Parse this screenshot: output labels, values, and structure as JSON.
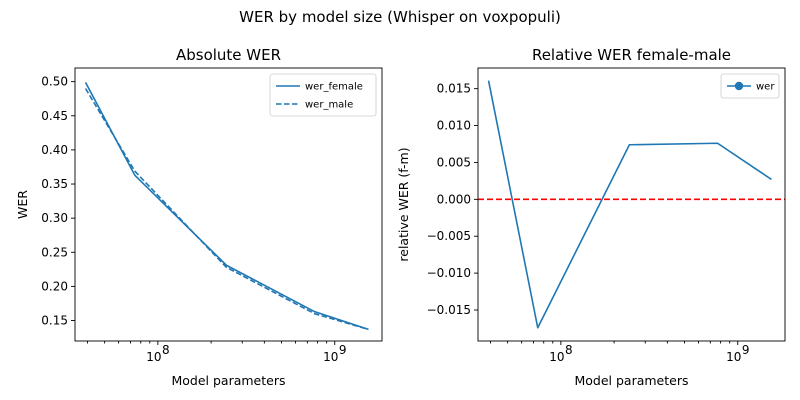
{
  "suptitle": "WER by model size (Whisper on voxpopuli)",
  "chart_data": [
    {
      "type": "line",
      "title": "Absolute WER",
      "xlabel": "Model parameters",
      "ylabel": "WER",
      "xscale": "log",
      "xlim": [
        34000000,
        1850000000
      ],
      "ylim": [
        0.12,
        0.52
      ],
      "x": [
        39000000,
        74000000,
        244000000,
        769000000,
        1550000000
      ],
      "yticks": [
        0.15,
        0.2,
        0.25,
        0.3,
        0.35,
        0.4,
        0.45,
        0.5
      ],
      "ytick_labels": [
        "0.15",
        "0.20",
        "0.25",
        "0.30",
        "0.35",
        "0.40",
        "0.45",
        "0.50"
      ],
      "xticks": [
        100000000,
        1000000000
      ],
      "xtick_labels": [
        "10",
        "10"
      ],
      "xtick_exponents": [
        "8",
        "9"
      ],
      "grid": false,
      "legend_placement": "top-right",
      "series": [
        {
          "name": "wer_female",
          "values": [
            0.499,
            0.363,
            0.231,
            0.163,
            0.137
          ],
          "color": "#1f77b4",
          "style": "solid"
        },
        {
          "name": "wer_male",
          "values": [
            0.49,
            0.369,
            0.228,
            0.16,
            0.137
          ],
          "color": "#1f77b4",
          "style": "dashed"
        }
      ]
    },
    {
      "type": "line",
      "title": "Relative WER female-male",
      "xlabel": "Model parameters",
      "ylabel": "relative WER (f-m)",
      "xscale": "log",
      "xlim": [
        34000000,
        1850000000
      ],
      "ylim": [
        -0.0192,
        0.0178
      ],
      "x": [
        39000000,
        74000000,
        244000000,
        769000000,
        1550000000
      ],
      "yticks": [
        -0.015,
        -0.01,
        -0.005,
        0.0,
        0.005,
        0.01,
        0.015
      ],
      "ytick_labels": [
        "−0.015",
        "−0.010",
        "−0.005",
        "0.000",
        "0.005",
        "0.010",
        "0.015"
      ],
      "xticks": [
        100000000,
        1000000000
      ],
      "xtick_labels": [
        "10",
        "10"
      ],
      "xtick_exponents": [
        "8",
        "9"
      ],
      "grid": false,
      "legend_placement": "top-right",
      "reference_line": {
        "y": 0.0,
        "color": "#ff0000",
        "style": "dashed"
      },
      "series": [
        {
          "name": "wer",
          "values": [
            0.0161,
            -0.0174,
            0.0074,
            0.0076,
            0.0027
          ],
          "color": "#1f77b4",
          "style": "solid",
          "legend_marker": "circle"
        }
      ]
    }
  ]
}
